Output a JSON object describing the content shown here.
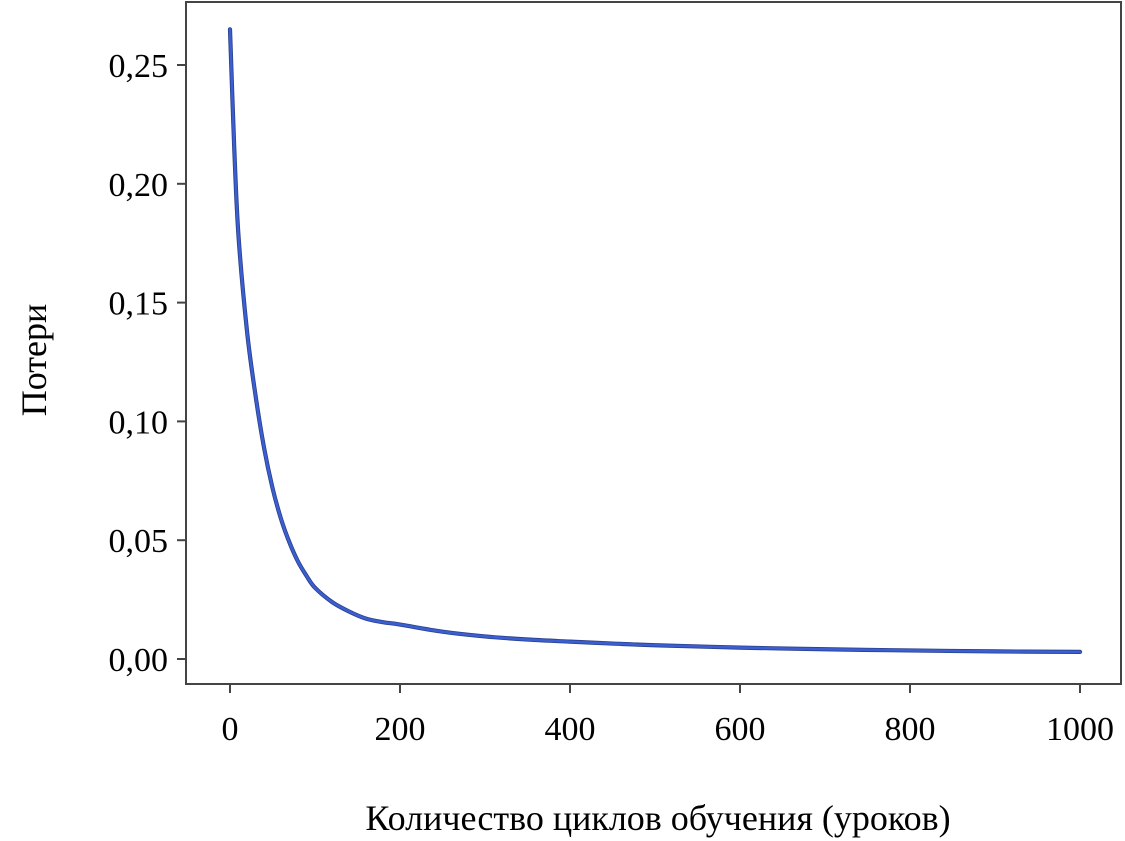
{
  "chart_data": {
    "type": "line",
    "title": "",
    "xlabel": "Количество циклов обучения (уроков)",
    "ylabel": "Потери",
    "xlim": [
      0,
      1000
    ],
    "ylim": [
      0,
      0.25
    ],
    "x_ticks": [
      {
        "value": 0,
        "label": "0"
      },
      {
        "value": 200,
        "label": "200"
      },
      {
        "value": 400,
        "label": "400"
      },
      {
        "value": 600,
        "label": "600"
      },
      {
        "value": 800,
        "label": "800"
      },
      {
        "value": 1000,
        "label": "1000"
      }
    ],
    "y_ticks": [
      {
        "value": 0.0,
        "label": "0,00"
      },
      {
        "value": 0.05,
        "label": "0,05"
      },
      {
        "value": 0.1,
        "label": "0,10"
      },
      {
        "value": 0.15,
        "label": "0,15"
      },
      {
        "value": 0.2,
        "label": "0,20"
      },
      {
        "value": 0.25,
        "label": "0,25"
      }
    ],
    "grid": false,
    "legend": "none",
    "series": [
      {
        "color": "#3b5fd0",
        "x": [
          0,
          5,
          10,
          20,
          30,
          40,
          50,
          60,
          70,
          80,
          90,
          100,
          120,
          140,
          160,
          180,
          200,
          250,
          300,
          350,
          400,
          450,
          500,
          600,
          700,
          800,
          900,
          1000
        ],
        "y": [
          0.265,
          0.215,
          0.178,
          0.138,
          0.111,
          0.089,
          0.072,
          0.059,
          0.049,
          0.041,
          0.035,
          0.03,
          0.024,
          0.02,
          0.017,
          0.0155,
          0.0145,
          0.0115,
          0.0095,
          0.0082,
          0.0073,
          0.0065,
          0.0058,
          0.0048,
          0.0041,
          0.0036,
          0.0032,
          0.003
        ]
      }
    ]
  }
}
